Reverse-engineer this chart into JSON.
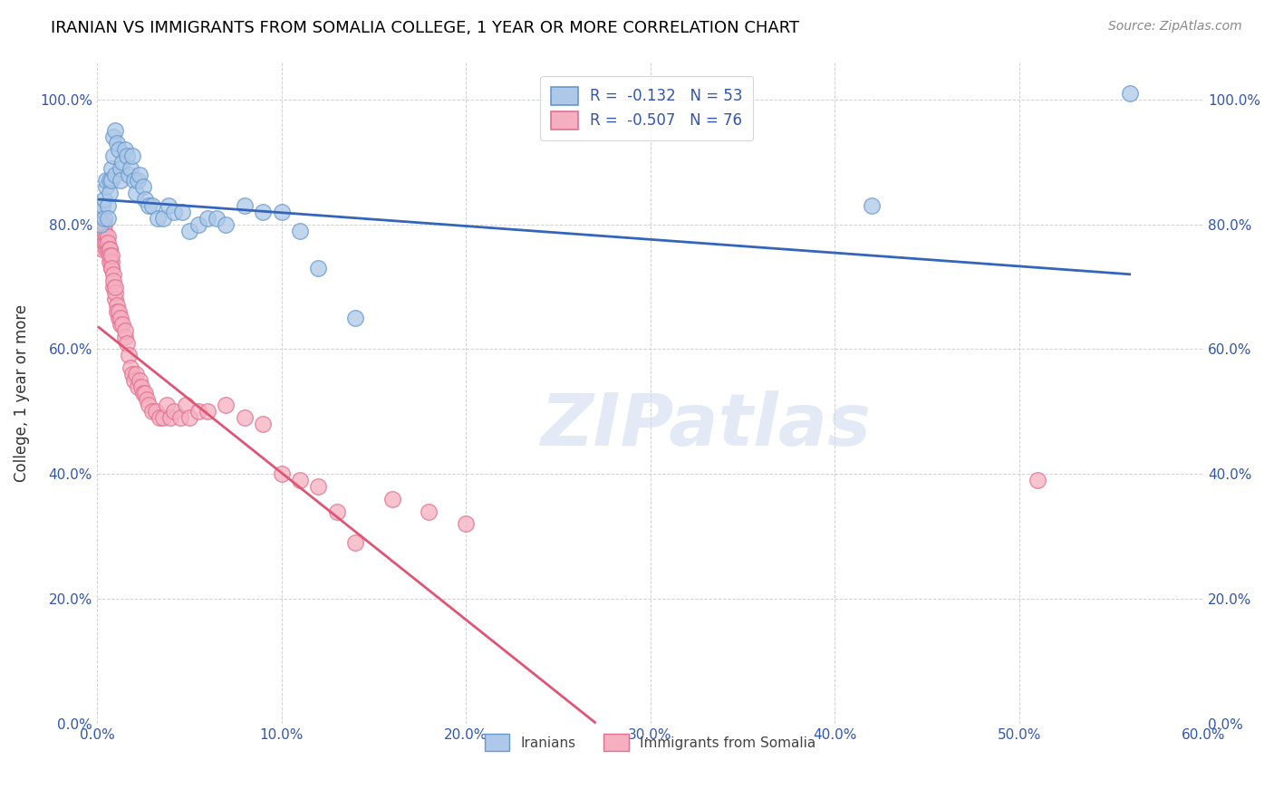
{
  "title": "IRANIAN VS IMMIGRANTS FROM SOMALIA COLLEGE, 1 YEAR OR MORE CORRELATION CHART",
  "source": "Source: ZipAtlas.com",
  "xlabel": "",
  "ylabel": "College, 1 year or more",
  "xlim": [
    0.0,
    0.6
  ],
  "ylim": [
    0.0,
    1.06
  ],
  "xticks": [
    0.0,
    0.1,
    0.2,
    0.3,
    0.4,
    0.5,
    0.6
  ],
  "yticks": [
    0.0,
    0.2,
    0.4,
    0.6,
    0.8,
    1.0
  ],
  "ytick_labels": [
    "0.0%",
    "20.0%",
    "40.0%",
    "60.0%",
    "80.0%",
    "100.0%"
  ],
  "xtick_labels": [
    "0.0%",
    "10.0%",
    "20.0%",
    "30.0%",
    "40.0%",
    "50.0%",
    "60.0%"
  ],
  "blue_color": "#adc8e8",
  "pink_color": "#f5afc0",
  "blue_edge": "#6699cc",
  "pink_edge": "#e07090",
  "line_blue": "#3366bb",
  "line_pink": "#e05575",
  "R_blue": -0.132,
  "N_blue": 53,
  "R_pink": -0.507,
  "N_pink": 76,
  "legend_blue_label": "Iranians",
  "legend_pink_label": "Immigrants from Somalia",
  "watermark": "ZIPatlas",
  "blue_x": [
    0.001,
    0.002,
    0.003,
    0.004,
    0.004,
    0.005,
    0.005,
    0.006,
    0.006,
    0.007,
    0.007,
    0.008,
    0.008,
    0.009,
    0.009,
    0.01,
    0.01,
    0.011,
    0.012,
    0.013,
    0.013,
    0.014,
    0.015,
    0.016,
    0.017,
    0.018,
    0.019,
    0.02,
    0.021,
    0.022,
    0.023,
    0.025,
    0.026,
    0.028,
    0.03,
    0.033,
    0.036,
    0.039,
    0.042,
    0.046,
    0.05,
    0.055,
    0.06,
    0.065,
    0.07,
    0.08,
    0.09,
    0.1,
    0.11,
    0.12,
    0.14,
    0.42,
    0.56
  ],
  "blue_y": [
    0.82,
    0.8,
    0.83,
    0.84,
    0.81,
    0.86,
    0.87,
    0.83,
    0.81,
    0.87,
    0.85,
    0.89,
    0.87,
    0.91,
    0.94,
    0.88,
    0.95,
    0.93,
    0.92,
    0.89,
    0.87,
    0.9,
    0.92,
    0.91,
    0.88,
    0.89,
    0.91,
    0.87,
    0.85,
    0.87,
    0.88,
    0.86,
    0.84,
    0.83,
    0.83,
    0.81,
    0.81,
    0.83,
    0.82,
    0.82,
    0.79,
    0.8,
    0.81,
    0.81,
    0.8,
    0.83,
    0.82,
    0.82,
    0.79,
    0.73,
    0.65,
    0.83,
    1.01
  ],
  "pink_x": [
    0.001,
    0.001,
    0.002,
    0.002,
    0.003,
    0.003,
    0.003,
    0.004,
    0.004,
    0.004,
    0.005,
    0.005,
    0.005,
    0.006,
    0.006,
    0.006,
    0.007,
    0.007,
    0.007,
    0.007,
    0.008,
    0.008,
    0.008,
    0.008,
    0.009,
    0.009,
    0.009,
    0.01,
    0.01,
    0.01,
    0.011,
    0.011,
    0.012,
    0.012,
    0.013,
    0.013,
    0.014,
    0.015,
    0.015,
    0.016,
    0.017,
    0.018,
    0.019,
    0.02,
    0.021,
    0.022,
    0.023,
    0.024,
    0.025,
    0.026,
    0.027,
    0.028,
    0.03,
    0.032,
    0.034,
    0.036,
    0.038,
    0.04,
    0.042,
    0.045,
    0.048,
    0.05,
    0.055,
    0.06,
    0.07,
    0.08,
    0.09,
    0.1,
    0.11,
    0.12,
    0.13,
    0.14,
    0.16,
    0.18,
    0.2,
    0.51
  ],
  "pink_y": [
    0.79,
    0.8,
    0.81,
    0.79,
    0.79,
    0.78,
    0.76,
    0.79,
    0.77,
    0.8,
    0.78,
    0.76,
    0.77,
    0.76,
    0.78,
    0.77,
    0.76,
    0.74,
    0.76,
    0.75,
    0.73,
    0.74,
    0.75,
    0.73,
    0.72,
    0.7,
    0.71,
    0.68,
    0.69,
    0.7,
    0.67,
    0.66,
    0.65,
    0.66,
    0.64,
    0.65,
    0.64,
    0.62,
    0.63,
    0.61,
    0.59,
    0.57,
    0.56,
    0.55,
    0.56,
    0.54,
    0.55,
    0.54,
    0.53,
    0.53,
    0.52,
    0.51,
    0.5,
    0.5,
    0.49,
    0.49,
    0.51,
    0.49,
    0.5,
    0.49,
    0.51,
    0.49,
    0.5,
    0.5,
    0.51,
    0.49,
    0.48,
    0.4,
    0.39,
    0.38,
    0.34,
    0.29,
    0.36,
    0.34,
    0.32,
    0.39
  ],
  "blue_trend_x": [
    0.001,
    0.56
  ],
  "blue_trend_y": [
    0.84,
    0.72
  ],
  "pink_trend_x": [
    0.001,
    0.27
  ],
  "pink_trend_y": [
    0.635,
    0.002
  ]
}
